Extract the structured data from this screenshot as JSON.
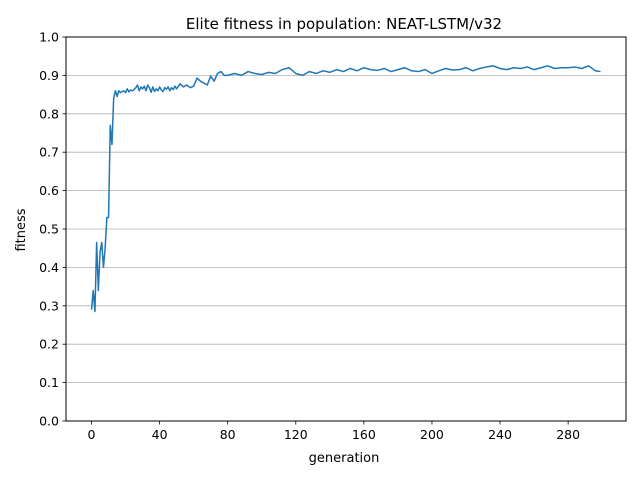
{
  "chart_data": {
    "type": "line",
    "title": "Elite fitness in population: NEAT-LSTM/v32",
    "xlabel": "generation",
    "ylabel": "fitness",
    "xlim": [
      -15,
      314
    ],
    "ylim": [
      0,
      1.0
    ],
    "xticks": [
      0,
      40,
      80,
      120,
      160,
      200,
      240,
      280
    ],
    "yticks": [
      0.0,
      0.1,
      0.2,
      0.3,
      0.4,
      0.5,
      0.6,
      0.7,
      0.8,
      0.9,
      1.0
    ],
    "xtick_labels": [
      "0",
      "40",
      "80",
      "120",
      "160",
      "200",
      "240",
      "280"
    ],
    "ytick_labels": [
      "0.0",
      "0.1",
      "0.2",
      "0.3",
      "0.4",
      "0.5",
      "0.6",
      "0.7",
      "0.8",
      "0.9",
      "1.0"
    ],
    "grid": "y-axis only",
    "line_color": "#1f77b4",
    "series": [
      {
        "x": [
          0,
          1,
          2,
          3,
          4,
          5,
          6,
          7,
          8,
          9,
          10,
          11,
          12,
          13,
          14,
          15,
          16,
          17,
          18,
          19,
          20,
          21,
          22,
          23,
          24,
          25,
          26,
          27,
          28,
          29,
          30,
          31,
          32,
          33,
          34,
          35,
          36,
          37,
          38,
          39,
          40,
          41,
          42,
          43,
          44,
          45,
          46,
          47,
          48,
          49,
          50,
          52,
          54,
          56,
          58,
          60,
          62,
          64,
          66,
          68,
          70,
          72,
          74,
          76,
          78,
          80,
          84,
          88,
          92,
          96,
          100,
          104,
          108,
          112,
          116,
          120,
          124,
          128,
          132,
          136,
          140,
          144,
          148,
          152,
          156,
          160,
          164,
          168,
          172,
          176,
          180,
          184,
          188,
          192,
          196,
          200,
          204,
          208,
          212,
          216,
          220,
          224,
          228,
          232,
          236,
          240,
          244,
          248,
          252,
          256,
          260,
          264,
          268,
          272,
          276,
          280,
          284,
          288,
          292,
          296,
          299
        ],
        "y": [
          0.29,
          0.34,
          0.285,
          0.465,
          0.34,
          0.44,
          0.465,
          0.4,
          0.45,
          0.53,
          0.53,
          0.77,
          0.72,
          0.84,
          0.86,
          0.845,
          0.86,
          0.855,
          0.858,
          0.86,
          0.855,
          0.865,
          0.857,
          0.862,
          0.86,
          0.863,
          0.868,
          0.875,
          0.86,
          0.87,
          0.865,
          0.872,
          0.86,
          0.875,
          0.868,
          0.856,
          0.87,
          0.858,
          0.865,
          0.86,
          0.87,
          0.862,
          0.858,
          0.868,
          0.864,
          0.87,
          0.86,
          0.868,
          0.863,
          0.872,
          0.865,
          0.878,
          0.87,
          0.875,
          0.868,
          0.872,
          0.893,
          0.885,
          0.88,
          0.875,
          0.898,
          0.885,
          0.905,
          0.91,
          0.9,
          0.9,
          0.905,
          0.9,
          0.91,
          0.905,
          0.902,
          0.908,
          0.905,
          0.915,
          0.92,
          0.905,
          0.9,
          0.91,
          0.905,
          0.912,
          0.908,
          0.915,
          0.91,
          0.918,
          0.912,
          0.92,
          0.915,
          0.913,
          0.918,
          0.91,
          0.915,
          0.92,
          0.912,
          0.91,
          0.915,
          0.905,
          0.912,
          0.918,
          0.914,
          0.915,
          0.92,
          0.912,
          0.918,
          0.922,
          0.925,
          0.918,
          0.915,
          0.92,
          0.918,
          0.922,
          0.915,
          0.92,
          0.925,
          0.918,
          0.92,
          0.92,
          0.922,
          0.918,
          0.925,
          0.912,
          0.91
        ]
      }
    ]
  }
}
